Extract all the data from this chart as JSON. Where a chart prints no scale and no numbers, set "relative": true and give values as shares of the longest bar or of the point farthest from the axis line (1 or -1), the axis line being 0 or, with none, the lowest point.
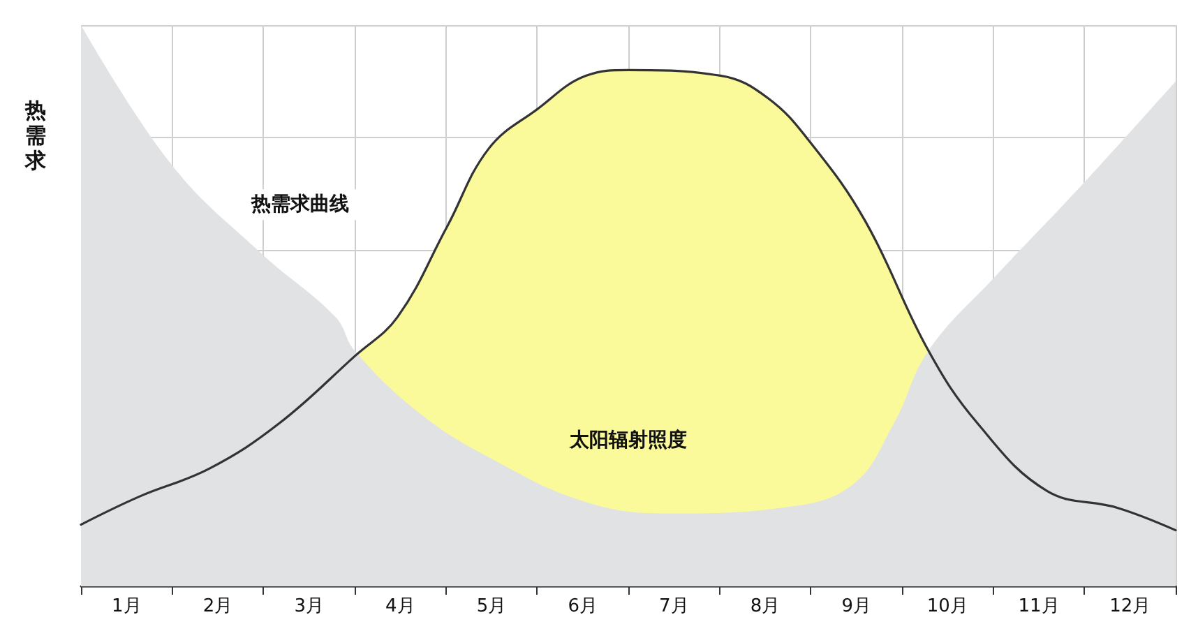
{
  "chart_data": {
    "type": "area",
    "relative": true,
    "ylabel": "热需求",
    "xlim": [
      0,
      12
    ],
    "xticks": [
      {
        "value": 0,
        "label": null
      },
      {
        "value": 0.5,
        "label": "1月"
      },
      {
        "value": 1,
        "label": null
      },
      {
        "value": 1.5,
        "label": "2月"
      },
      {
        "value": 2,
        "label": null
      },
      {
        "value": 2.5,
        "label": "3月"
      },
      {
        "value": 3,
        "label": null
      },
      {
        "value": 3.5,
        "label": "4月"
      },
      {
        "value": 4,
        "label": null
      },
      {
        "value": 4.5,
        "label": "5月"
      },
      {
        "value": 5,
        "label": null
      },
      {
        "value": 5.5,
        "label": "6月"
      },
      {
        "value": 6,
        "label": null
      },
      {
        "value": 6.5,
        "label": "7月"
      },
      {
        "value": 7,
        "label": null
      },
      {
        "value": 7.5,
        "label": "8月"
      },
      {
        "value": 8,
        "label": null
      },
      {
        "value": 8.5,
        "label": "9月"
      },
      {
        "value": 9,
        "label": null
      },
      {
        "value": 9.5,
        "label": "10月"
      },
      {
        "value": 10,
        "label": null
      },
      {
        "value": 10.5,
        "label": "11月"
      },
      {
        "value": 11,
        "label": null
      },
      {
        "value": 11.5,
        "label": "12月"
      },
      {
        "value": 12,
        "label": null
      }
    ],
    "grid": true,
    "legend": false,
    "marker": "none",
    "series": [
      {
        "name": "热需求曲线",
        "color": "#e1e2e4",
        "x": [
          0,
          1,
          2,
          2.79,
          3,
          3.7,
          4.47,
          5.54,
          6.46,
          7.68,
          8.45,
          8.91,
          9.29,
          10.01,
          11,
          12
        ],
        "values": [
          1.0,
          0.75,
          0.59,
          0.48,
          0.42,
          0.31,
          0.23,
          0.15,
          0.13,
          0.14,
          0.18,
          0.29,
          0.42,
          0.55,
          0.72,
          0.9
        ]
      },
      {
        "name": "太阳辐射照度",
        "color": "#fafa9a",
        "line_style": "solid",
        "x": [
          0,
          0.64,
          1.41,
          2.17,
          3,
          3.47,
          4.01,
          4.47,
          5.0,
          5.54,
          6.0,
          7.01,
          7.53,
          8.0,
          8.6,
          9.29,
          9.83,
          10.59,
          11.36,
          12
        ],
        "values": [
          0.11,
          0.16,
          0.21,
          0.29,
          0.41,
          0.48,
          0.64,
          0.78,
          0.85,
          0.91,
          0.92,
          0.91,
          0.87,
          0.79,
          0.65,
          0.42,
          0.29,
          0.17,
          0.14,
          0.1
        ]
      }
    ]
  }
}
